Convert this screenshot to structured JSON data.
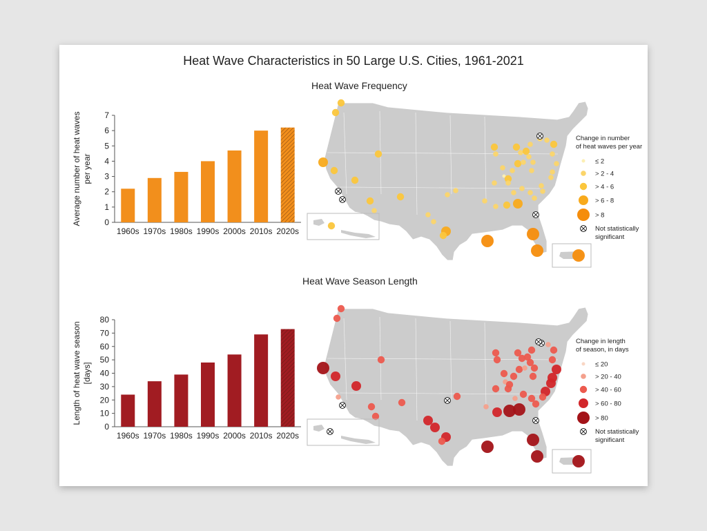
{
  "title": "Heat Wave Characteristics in 50 Large U.S. Cities, 1961-2021",
  "frequency_section": {
    "title": "Heat Wave Frequency",
    "legend_title_line1": "Change in number",
    "legend_title_line2": "of heat waves per year",
    "legend_items": [
      "≤  2",
      ">  2 - 4",
      "> 4 - 6",
      "> 6 - 8",
      "> 8"
    ],
    "not_significant_line1": "Not statistically",
    "not_significant_line2": "significant"
  },
  "season_section": {
    "title": "Heat Wave Season Length",
    "legend_title_line1": "Change in length",
    "legend_title_line2": "of season, in days",
    "legend_items": [
      "≤ 20",
      "> 20 - 40",
      "> 40 - 60",
      "> 60 - 80",
      "> 80"
    ],
    "not_significant_line1": "Not statistically",
    "not_significant_line2": "significant"
  },
  "colors": {
    "freq_bar": "#f28f1c",
    "season_bar": "#a11c22",
    "map_land": "#cccccc",
    "freq_scale": [
      "#fcefb4",
      "#fbd56a",
      "#fbc63c",
      "#f8aa1c",
      "#f58d0c"
    ],
    "season_scale": [
      "#f9d6c4",
      "#f4a08c",
      "#ec5a4e",
      "#d2262a",
      "#a31318"
    ]
  },
  "chart_data": [
    {
      "type": "bar",
      "title": "Heat Wave Frequency",
      "categories": [
        "1960s",
        "1970s",
        "1980s",
        "1990s",
        "2000s",
        "2010s",
        "2020s"
      ],
      "values": [
        2.2,
        2.9,
        3.3,
        4.0,
        4.7,
        6.0,
        6.2
      ],
      "hatched_category": "2020s",
      "xlabel": "",
      "ylabel": "Average number of heat waves per year",
      "ylabel_line1": "Average number of heat waves",
      "ylabel_line2": "per year",
      "ylim": [
        0,
        7
      ],
      "yticks": [
        0,
        1,
        2,
        3,
        4,
        5,
        6,
        7
      ]
    },
    {
      "type": "bar",
      "title": "Heat Wave Season Length",
      "categories": [
        "1960s",
        "1970s",
        "1980s",
        "1990s",
        "2000s",
        "2010s",
        "2020s"
      ],
      "values": [
        24,
        34,
        39,
        48,
        54,
        69,
        73
      ],
      "hatched_category": "2020s",
      "xlabel": "",
      "ylabel": "Length of heat wave season [days]",
      "ylabel_line1": "Length of heat wave season",
      "ylabel_line2": "[days]",
      "ylim": [
        0,
        80
      ],
      "yticks": [
        0,
        10,
        20,
        30,
        40,
        50,
        60,
        70,
        80
      ]
    }
  ]
}
